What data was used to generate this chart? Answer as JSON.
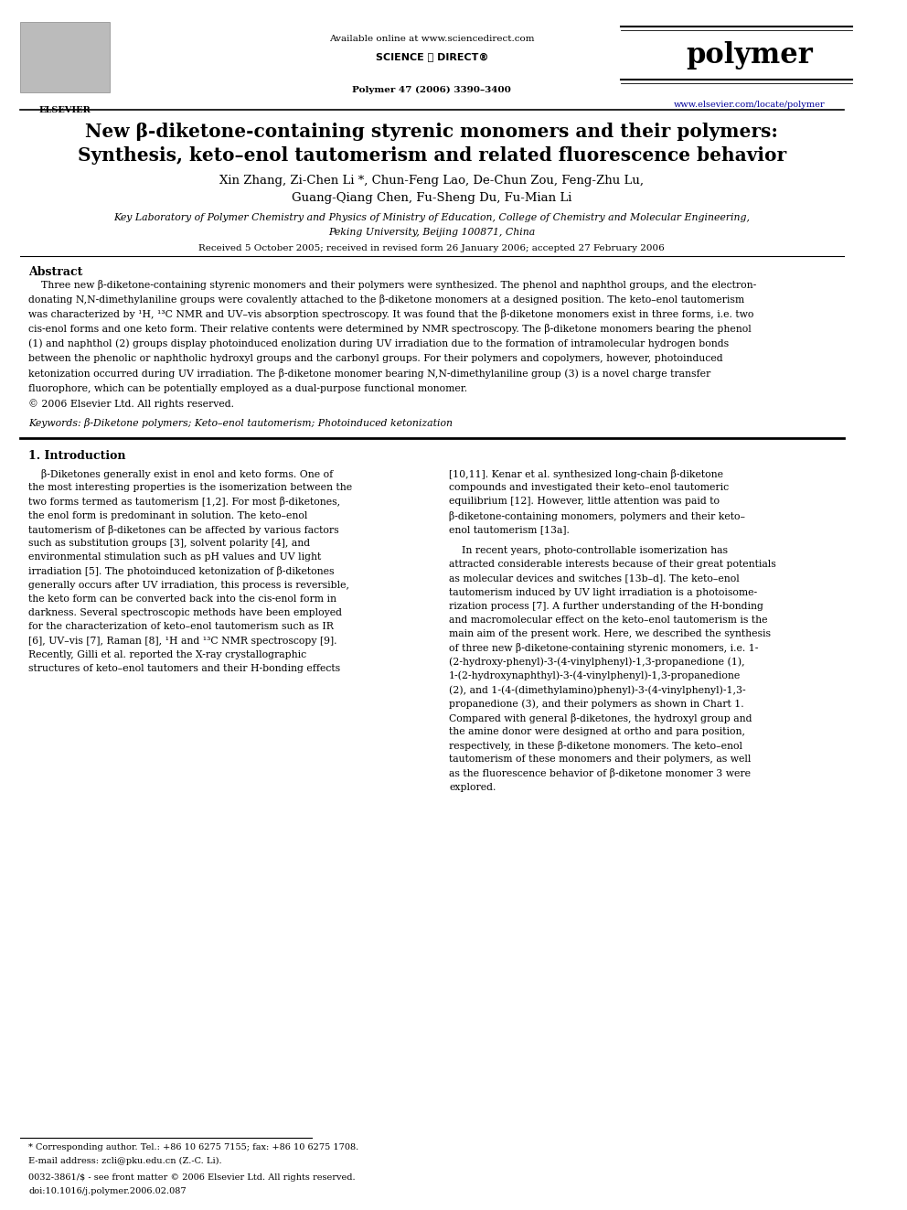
{
  "fig_width": 9.92,
  "fig_height": 13.23,
  "bg_color": "#ffffff",
  "header": {
    "available_online": "Available online at www.sciencedirect.com",
    "journal_name": "polymer",
    "journal_info": "Polymer 47 (2006) 3390–3400",
    "website": "www.elsevier.com/locate/polymer"
  },
  "title_line1": "New β-diketone-containing styrenic monomers and their polymers:",
  "title_line2": "Synthesis, keto–enol tautomerism and related fluorescence behavior",
  "authors_line1": "Xin Zhang, Zi-Chen Li *, Chun-Feng Lao, De-Chun Zou, Feng-Zhu Lu,",
  "authors_line2": "Guang-Qiang Chen, Fu-Sheng Du, Fu-Mian Li",
  "affiliation_line1": "Key Laboratory of Polymer Chemistry and Physics of Ministry of Education, College of Chemistry and Molecular Engineering,",
  "affiliation_line2": "Peking University, Beijing 100871, China",
  "received": "Received 5 October 2005; received in revised form 26 January 2006; accepted 27 February 2006",
  "abstract_title": "Abstract",
  "keywords": "Keywords: β-Diketone polymers; Keto–enol tautomerism; Photoinduced ketonization",
  "section1_title": "1. Introduction",
  "footnote_star": "* Corresponding author. Tel.: +86 10 6275 7155; fax: +86 10 6275 1708.",
  "footnote_email": "E-mail address: zcli@pku.edu.cn (Z.-C. Li).",
  "footnote_issn": "0032-3861/$ - see front matter © 2006 Elsevier Ltd. All rights reserved.",
  "footnote_doi": "doi:10.1016/j.polymer.2006.02.087",
  "abstract_lines": [
    "    Three new β-diketone-containing styrenic monomers and their polymers were synthesized. The phenol and naphthol groups, and the electron-",
    "donating N,N-dimethylaniline groups were covalently attached to the β-diketone monomers at a designed position. The keto–enol tautomerism",
    "was characterized by ¹H, ¹³C NMR and UV–vis absorption spectroscopy. It was found that the β-diketone monomers exist in three forms, i.e. two",
    "cis-enol forms and one keto form. Their relative contents were determined by NMR spectroscopy. The β-diketone monomers bearing the phenol",
    "(1) and naphthol (2) groups display photoinduced enolization during UV irradiation due to the formation of intramolecular hydrogen bonds",
    "between the phenolic or naphtholic hydroxyl groups and the carbonyl groups. For their polymers and copolymers, however, photoinduced",
    "ketonization occurred during UV irradiation. The β-diketone monomer bearing N,N-dimethylaniline group (3) is a novel charge transfer",
    "fluorophore, which can be potentially employed as a dual-purpose functional monomer.",
    "© 2006 Elsevier Ltd. All rights reserved."
  ],
  "col1_lines": [
    "    β-Diketones generally exist in enol and keto forms. One of",
    "the most interesting properties is the isomerization between the",
    "two forms termed as tautomerism [1,2]. For most β-diketones,",
    "the enol form is predominant in solution. The keto–enol",
    "tautomerism of β-diketones can be affected by various factors",
    "such as substitution groups [3], solvent polarity [4], and",
    "environmental stimulation such as pH values and UV light",
    "irradiation [5]. The photoinduced ketonization of β-diketones",
    "generally occurs after UV irradiation, this process is reversible,",
    "the keto form can be converted back into the cis-enol form in",
    "darkness. Several spectroscopic methods have been employed",
    "for the characterization of keto–enol tautomerism such as IR",
    "[6], UV–vis [7], Raman [8], ¹H and ¹³C NMR spectroscopy [9].",
    "Recently, Gilli et al. reported the X-ray crystallographic",
    "structures of keto–enol tautomers and their H-bonding effects"
  ],
  "col2_lines_p1": [
    "[10,11]. Kenar et al. synthesized long-chain β-diketone",
    "compounds and investigated their keto–enol tautomeric",
    "equilibrium [12]. However, little attention was paid to",
    "β-diketone-containing monomers, polymers and their keto–",
    "enol tautomerism [13a]."
  ],
  "col2_lines_p2": [
    "    In recent years, photo-controllable isomerization has",
    "attracted considerable interests because of their great potentials",
    "as molecular devices and switches [13b–d]. The keto–enol",
    "tautomerism induced by UV light irradiation is a photoisome-",
    "rization process [7]. A further understanding of the H-bonding",
    "and macromolecular effect on the keto–enol tautomerism is the",
    "main aim of the present work. Here, we described the synthesis",
    "of three new β-diketone-containing styrenic monomers, i.e. 1-",
    "(2-hydroxy-phenyl)-3-(4-vinylphenyl)-1,3-propanedione (1),",
    "1-(2-hydroxynaphthyl)-3-(4-vinylphenyl)-1,3-propanedione",
    "(2), and 1-(4-(dimethylamino)phenyl)-3-(4-vinylphenyl)-1,3-",
    "propanedione (3), and their polymers as shown in Chart 1.",
    "Compared with general β-diketones, the hydroxyl group and",
    "the amine donor were designed at ortho and para position,",
    "respectively, in these β-diketone monomers. The keto–enol",
    "tautomerism of these monomers and their polymers, as well",
    "as the fluorescence behavior of β-diketone monomer 3 were",
    "explored."
  ]
}
